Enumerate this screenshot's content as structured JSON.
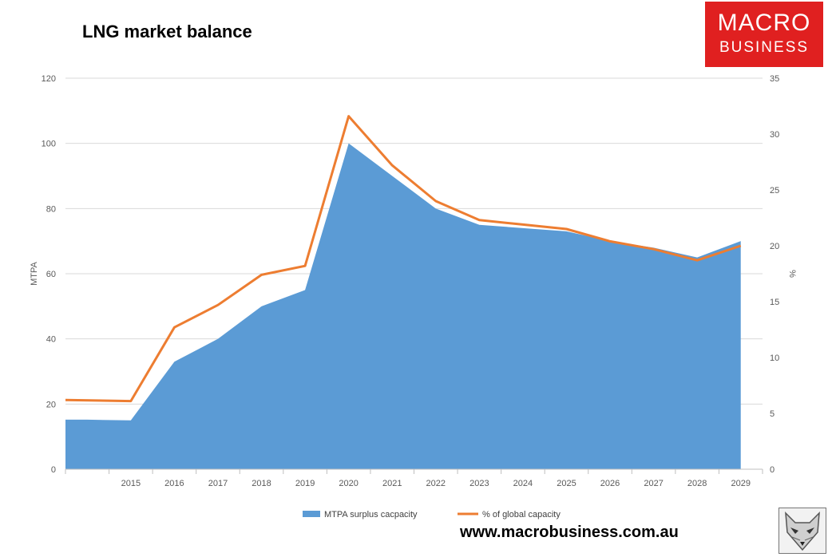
{
  "title": "LNG market balance",
  "logo": {
    "line1": "MACRO",
    "line2": "BUSINESS",
    "color": "#e02020"
  },
  "footer_url": "www.macrobusiness.com.au",
  "fox_icon": "fox-head-icon",
  "chart_data": {
    "type": "area",
    "title": "LNG market balance",
    "categories": [
      "",
      "2015",
      "2016",
      "2017",
      "2018",
      "2019",
      "2020",
      "2021",
      "2022",
      "2023",
      "2024",
      "2025",
      "2026",
      "2027",
      "2028",
      "2029"
    ],
    "left_axis": {
      "label": "MTPA",
      "min": 0,
      "max": 120,
      "ticks": [
        "0",
        "20",
        "40",
        "60",
        "80",
        "100",
        "120"
      ]
    },
    "right_axis": {
      "label": "%",
      "min": 0,
      "max": 35,
      "ticks": [
        "0",
        "5",
        "10",
        "15",
        "20",
        "25",
        "30",
        "35"
      ]
    },
    "grid": true,
    "legend_position": "bottom",
    "series": [
      {
        "name": "MTPA surplus cacpacity",
        "type": "area",
        "axis": "left",
        "color": "#5b9bd5",
        "values": [
          15.2,
          15,
          33,
          40,
          50,
          55,
          100,
          90,
          80,
          75,
          74,
          73,
          70,
          68,
          65,
          70
        ]
      },
      {
        "name": "% of global capacity",
        "type": "line",
        "axis": "right",
        "color": "#ed7d31",
        "values": [
          6.2,
          6.1,
          12.7,
          14.7,
          17.4,
          18.2,
          31.6,
          27.2,
          24.0,
          22.3,
          21.9,
          21.5,
          20.4,
          19.7,
          18.7,
          20.0
        ]
      }
    ]
  }
}
